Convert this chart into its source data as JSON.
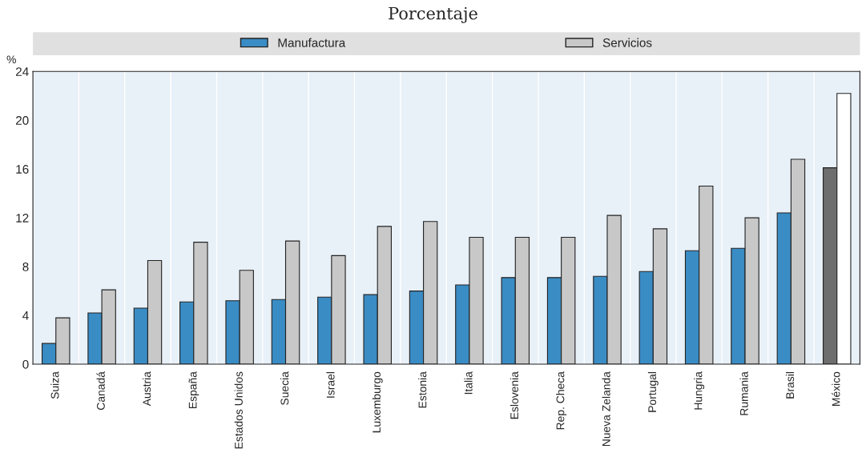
{
  "chart_data": {
    "type": "bar",
    "title": "Porcentaje",
    "ylabel": "%",
    "categories": [
      "Suiza",
      "Canadá",
      "Austria",
      "España",
      "Estados Unidos",
      "Suecia",
      "Israel",
      "Luxemburgo",
      "Estonia",
      "Italia",
      "Eslovenia",
      "Rep. Checa",
      "Nueva Zelanda",
      "Portugal",
      "Hungria",
      "Rumania",
      "Brasil",
      "México"
    ],
    "series": [
      {
        "name": "Manufactura",
        "color": "#3a8cc4",
        "colors": [
          "#3a8cc4",
          "#3a8cc4",
          "#3a8cc4",
          "#3a8cc4",
          "#3a8cc4",
          "#3a8cc4",
          "#3a8cc4",
          "#3a8cc4",
          "#3a8cc4",
          "#3a8cc4",
          "#3a8cc4",
          "#3a8cc4",
          "#3a8cc4",
          "#3a8cc4",
          "#3a8cc4",
          "#3a8cc4",
          "#3a8cc4",
          "#6e6e6e"
        ],
        "values": [
          1.7,
          4.2,
          4.6,
          5.1,
          5.2,
          5.3,
          5.5,
          5.7,
          6.0,
          6.5,
          7.1,
          7.1,
          7.2,
          7.6,
          9.3,
          9.5,
          12.4,
          16.1
        ]
      },
      {
        "name": "Servicios",
        "color": "#c8c8c8",
        "colors": [
          "#c8c8c8",
          "#c8c8c8",
          "#c8c8c8",
          "#c8c8c8",
          "#c8c8c8",
          "#c8c8c8",
          "#c8c8c8",
          "#c8c8c8",
          "#c8c8c8",
          "#c8c8c8",
          "#c8c8c8",
          "#c8c8c8",
          "#c8c8c8",
          "#c8c8c8",
          "#c8c8c8",
          "#c8c8c8",
          "#c8c8c8",
          "#ffffff"
        ],
        "values": [
          3.8,
          6.1,
          8.5,
          10.0,
          7.7,
          10.1,
          8.9,
          11.3,
          11.7,
          10.4,
          10.4,
          10.4,
          12.2,
          11.1,
          14.6,
          12.0,
          16.8,
          22.2
        ]
      }
    ],
    "ylim": [
      0,
      24
    ],
    "yticks": [
      0,
      4,
      8,
      12,
      16,
      20,
      24
    ],
    "legend": "top"
  }
}
